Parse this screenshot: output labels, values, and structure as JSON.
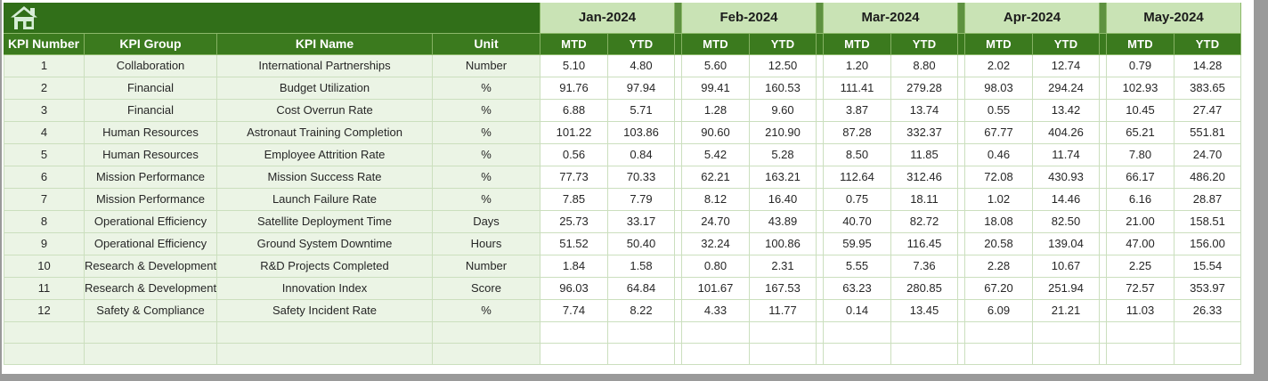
{
  "banner": {
    "home_icon": "home"
  },
  "table": {
    "left_headers": [
      "KPI Number",
      "KPI Group",
      "KPI Name",
      "Unit"
    ],
    "months": [
      "Jan-2024",
      "Feb-2024",
      "Mar-2024",
      "Apr-2024",
      "May-2024"
    ],
    "sub_headers": [
      "MTD",
      "YTD"
    ],
    "rows": [
      {
        "number": "1",
        "group": "Collaboration",
        "name": "International Partnerships",
        "unit": "Number",
        "values": [
          "5.10",
          "4.80",
          "5.60",
          "12.50",
          "1.20",
          "8.80",
          "2.02",
          "12.74",
          "0.79",
          "14.28"
        ]
      },
      {
        "number": "2",
        "group": "Financial",
        "name": "Budget Utilization",
        "unit": "%",
        "values": [
          "91.76",
          "97.94",
          "99.41",
          "160.53",
          "111.41",
          "279.28",
          "98.03",
          "294.24",
          "102.93",
          "383.65"
        ]
      },
      {
        "number": "3",
        "group": "Financial",
        "name": "Cost Overrun Rate",
        "unit": "%",
        "values": [
          "6.88",
          "5.71",
          "1.28",
          "9.60",
          "3.87",
          "13.74",
          "0.55",
          "13.42",
          "10.45",
          "27.47"
        ]
      },
      {
        "number": "4",
        "group": "Human Resources",
        "name": "Astronaut Training Completion",
        "unit": "%",
        "values": [
          "101.22",
          "103.86",
          "90.60",
          "210.90",
          "87.28",
          "332.37",
          "67.77",
          "404.26",
          "65.21",
          "551.81"
        ]
      },
      {
        "number": "5",
        "group": "Human Resources",
        "name": "Employee Attrition Rate",
        "unit": "%",
        "values": [
          "0.56",
          "0.84",
          "5.42",
          "5.28",
          "8.50",
          "11.85",
          "0.46",
          "11.74",
          "7.80",
          "24.70"
        ]
      },
      {
        "number": "6",
        "group": "Mission Performance",
        "name": "Mission Success Rate",
        "unit": "%",
        "values": [
          "77.73",
          "70.33",
          "62.21",
          "163.21",
          "112.64",
          "312.46",
          "72.08",
          "430.93",
          "66.17",
          "486.20"
        ]
      },
      {
        "number": "7",
        "group": "Mission Performance",
        "name": "Launch Failure Rate",
        "unit": "%",
        "values": [
          "7.85",
          "7.79",
          "8.12",
          "16.40",
          "0.75",
          "18.11",
          "1.02",
          "14.46",
          "6.16",
          "28.87"
        ]
      },
      {
        "number": "8",
        "group": "Operational Efficiency",
        "name": "Satellite Deployment Time",
        "unit": "Days",
        "values": [
          "25.73",
          "33.17",
          "24.70",
          "43.89",
          "40.70",
          "82.72",
          "18.08",
          "82.50",
          "21.00",
          "158.51"
        ]
      },
      {
        "number": "9",
        "group": "Operational Efficiency",
        "name": "Ground System Downtime",
        "unit": "Hours",
        "values": [
          "51.52",
          "50.40",
          "32.24",
          "100.86",
          "59.95",
          "116.45",
          "20.58",
          "139.04",
          "47.00",
          "156.00"
        ]
      },
      {
        "number": "10",
        "group": "Research & Development",
        "name": "R&D Projects Completed",
        "unit": "Number",
        "values": [
          "1.84",
          "1.58",
          "0.80",
          "2.31",
          "5.55",
          "7.36",
          "2.28",
          "10.67",
          "2.25",
          "15.54"
        ]
      },
      {
        "number": "11",
        "group": "Research & Development",
        "name": "Innovation Index",
        "unit": "Score",
        "values": [
          "96.03",
          "64.84",
          "101.67",
          "167.53",
          "63.23",
          "280.85",
          "67.20",
          "251.94",
          "72.57",
          "353.97"
        ]
      },
      {
        "number": "12",
        "group": "Safety & Compliance",
        "name": "Safety Incident Rate",
        "unit": "%",
        "values": [
          "7.74",
          "8.22",
          "4.33",
          "11.77",
          "0.14",
          "13.45",
          "6.09",
          "21.21",
          "11.03",
          "26.33"
        ]
      }
    ],
    "empty_rows": 2
  },
  "colors": {
    "banner_green": "#316F19",
    "dark_green": "#3B7A1E",
    "light_green_header": "#C9E3B5",
    "separator_green": "#5E9140",
    "row_tint": "#EBF4E5",
    "grid_line": "#CBDFBE",
    "frame_gray": "#9A9A9A"
  }
}
